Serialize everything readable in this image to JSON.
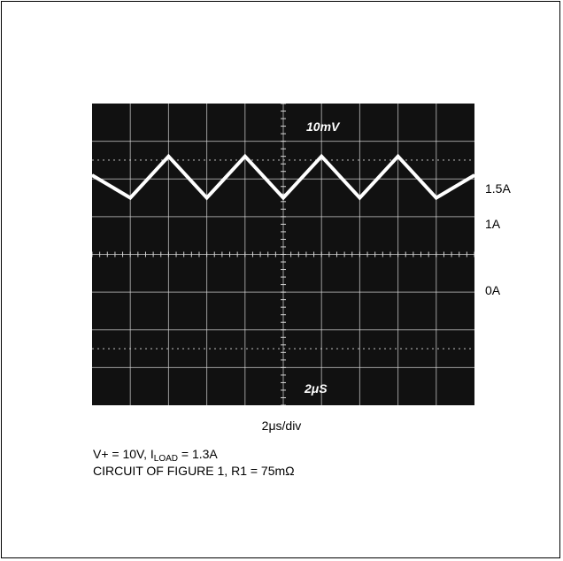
{
  "chart_data": {
    "type": "line",
    "screen_labels": {
      "top": "10mV",
      "bottom": "2μS"
    },
    "grid": {
      "divisions_x": 10,
      "divisions_y": 8
    },
    "series": [
      {
        "x_div": [
          0,
          1,
          2,
          3,
          4,
          5,
          6,
          7,
          8,
          9,
          10
        ],
        "y_div": [
          6.1,
          5.5,
          6.6,
          5.5,
          6.6,
          5.5,
          6.6,
          5.5,
          6.6,
          5.5,
          6.1
        ]
      }
    ],
    "level_labels": [
      {
        "text": "1.5A",
        "y_div": 6.6
      },
      {
        "text": "1A",
        "y_div": 5.5
      },
      {
        "text": "0A",
        "y_div": 3.2
      }
    ],
    "colors": {
      "screen": "#111111",
      "grid": "#d8d8d8",
      "trace": "#ffffff"
    }
  },
  "scale_label": "2μs/div",
  "caption": {
    "line1_prefix": "V+ = 10V, I",
    "line1_sub": "LOAD",
    "line1_suffix": " = 1.3A",
    "line2": "CIRCUIT OF FIGURE 1, R1 = 75mΩ"
  }
}
